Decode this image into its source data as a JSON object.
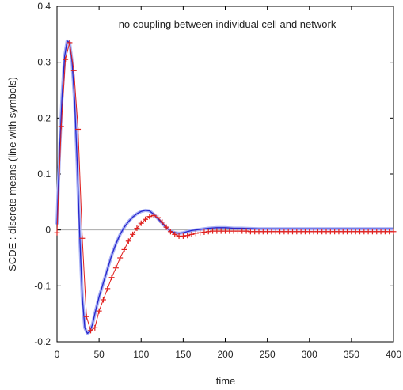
{
  "chart_data": {
    "type": "line",
    "title": "no coupling between individual cell and network",
    "xlabel": "time",
    "ylabel": "SCDE : discrete means (line with symbols)",
    "xlim": [
      0,
      400
    ],
    "ylim": [
      -0.2,
      0.4
    ],
    "xticks": [
      0,
      50,
      100,
      150,
      200,
      250,
      300,
      350,
      400
    ],
    "yticks": [
      -0.2,
      -0.1,
      0,
      0.1,
      0.2,
      0.3,
      0.4
    ],
    "xtick_labels": [
      "0",
      "50",
      "100",
      "150",
      "200",
      "250",
      "300",
      "350",
      "400"
    ],
    "ytick_labels": [
      "-0.2",
      "-0.1",
      "0",
      "0.1",
      "0.2",
      "0.3",
      "0.4"
    ],
    "zero_line": true,
    "series": [
      {
        "style": "line",
        "color": "#2626cc",
        "halo_color": "#aab2f5",
        "x": [
          0,
          3,
          6,
          9,
          12,
          15,
          18,
          21,
          24,
          27,
          30,
          33,
          36,
          39,
          42,
          45,
          50,
          55,
          60,
          65,
          70,
          75,
          80,
          85,
          90,
          95,
          100,
          105,
          110,
          115,
          120,
          125,
          130,
          135,
          140,
          145,
          150,
          155,
          160,
          170,
          180,
          190,
          200,
          210,
          220,
          240,
          260,
          280,
          300,
          320,
          340,
          360,
          380,
          400
        ],
        "y": [
          0.01,
          0.14,
          0.24,
          0.31,
          0.338,
          0.335,
          0.3,
          0.23,
          0.12,
          -0.01,
          -0.12,
          -0.175,
          -0.185,
          -0.182,
          -0.17,
          -0.15,
          -0.12,
          -0.095,
          -0.07,
          -0.045,
          -0.025,
          -0.008,
          0.005,
          0.015,
          0.023,
          0.029,
          0.033,
          0.035,
          0.034,
          0.028,
          0.02,
          0.012,
          0.004,
          -0.002,
          -0.005,
          -0.006,
          -0.005,
          -0.003,
          -0.001,
          0.001,
          0.003,
          0.004,
          0.004,
          0.003,
          0.003,
          0.002,
          0.002,
          0.002,
          0.002,
          0.002,
          0.002,
          0.002,
          0.002,
          0.002
        ]
      },
      {
        "style": "markers",
        "marker": "plus",
        "color": "#e0201e",
        "x": [
          0,
          5,
          10,
          15,
          20,
          25,
          30,
          35,
          40,
          45,
          50,
          55,
          60,
          65,
          70,
          75,
          80,
          85,
          90,
          95,
          100,
          105,
          110,
          115,
          120,
          125,
          130,
          135,
          140,
          145,
          150,
          155,
          160,
          165,
          170,
          175,
          180,
          185,
          190,
          195,
          200,
          205,
          210,
          215,
          220,
          225,
          230,
          235,
          240,
          245,
          250,
          255,
          260,
          265,
          270,
          275,
          280,
          285,
          290,
          295,
          300,
          305,
          310,
          315,
          320,
          325,
          330,
          335,
          340,
          345,
          350,
          355,
          360,
          365,
          370,
          375,
          380,
          385,
          390,
          395,
          400
        ],
        "y": [
          -0.005,
          0.185,
          0.305,
          0.335,
          0.285,
          0.18,
          -0.015,
          -0.155,
          -0.18,
          -0.175,
          -0.145,
          -0.125,
          -0.105,
          -0.085,
          -0.068,
          -0.05,
          -0.035,
          -0.02,
          -0.008,
          0.003,
          0.012,
          0.019,
          0.024,
          0.026,
          0.022,
          0.014,
          0.005,
          -0.003,
          -0.008,
          -0.011,
          -0.011,
          -0.01,
          -0.008,
          -0.006,
          -0.005,
          -0.004,
          -0.003,
          -0.002,
          -0.002,
          -0.002,
          -0.002,
          -0.002,
          -0.002,
          -0.002,
          -0.002,
          -0.002,
          -0.003,
          -0.003,
          -0.003,
          -0.003,
          -0.003,
          -0.003,
          -0.003,
          -0.003,
          -0.003,
          -0.003,
          -0.003,
          -0.003,
          -0.003,
          -0.003,
          -0.003,
          -0.003,
          -0.003,
          -0.003,
          -0.003,
          -0.003,
          -0.003,
          -0.003,
          -0.003,
          -0.003,
          -0.003,
          -0.003,
          -0.003,
          -0.003,
          -0.003,
          -0.003,
          -0.003,
          -0.003,
          -0.003,
          -0.003,
          -0.003
        ]
      }
    ]
  }
}
